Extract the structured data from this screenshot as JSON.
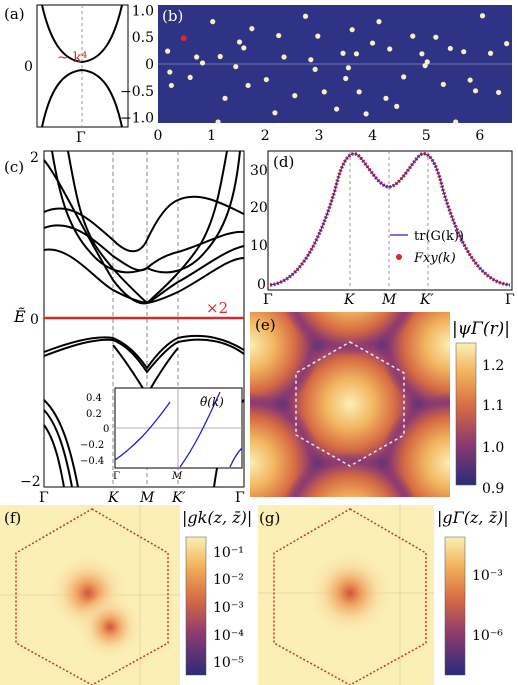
{
  "panels": [
    {
      "label": "(a)"
    },
    {
      "label": "(b)"
    },
    {
      "label": "(c)"
    },
    {
      "label": "(d)"
    },
    {
      "label": "(e)"
    },
    {
      "label": "(f)"
    },
    {
      "label": "(g)"
    }
  ],
  "colors": {
    "navy": "#2e3385",
    "red": "#d42a2a",
    "dot": "#f7f0c0",
    "blue": "#2222cc",
    "density_low": "#2a2b7a",
    "density_high": "#fbefb6"
  },
  "panel_a": {
    "annotation": "~ k⁴",
    "y_tick": "0",
    "x_tick": "Γ"
  },
  "panel_b": {
    "x_ticks": [
      "0",
      "1",
      "2",
      "3",
      "4",
      "5",
      "6"
    ],
    "y_ticks": [
      "1.0",
      "0.5",
      "0",
      "−0.5",
      "−1.0"
    ],
    "xlim": [
      0,
      6.6
    ],
    "ylim": [
      -1.1,
      1.1
    ],
    "marked_point": [
      0.48,
      0.48
    ],
    "points": [
      [
        0.18,
        0.24
      ],
      [
        0.22,
        -0.15
      ],
      [
        0.25,
        -0.4
      ],
      [
        0.6,
        -0.25
      ],
      [
        0.72,
        0.13
      ],
      [
        0.83,
        0.02
      ],
      [
        1.02,
        0.79
      ],
      [
        1.12,
        -1.08
      ],
      [
        1.16,
        0.14
      ],
      [
        1.25,
        -0.64
      ],
      [
        1.52,
        0.41
      ],
      [
        1.45,
        -0.05
      ],
      [
        1.6,
        0.3
      ],
      [
        1.68,
        -0.4
      ],
      [
        1.75,
        0.66
      ],
      [
        2.02,
        -0.29
      ],
      [
        2.18,
        -0.91
      ],
      [
        2.25,
        0.53
      ],
      [
        2.35,
        0.13
      ],
      [
        2.55,
        -0.59
      ],
      [
        2.75,
        0.89
      ],
      [
        2.85,
        0.08
      ],
      [
        2.93,
        -0.1
      ],
      [
        2.98,
        0.52
      ],
      [
        3.1,
        -0.52
      ],
      [
        3.33,
        -0.84
      ],
      [
        3.45,
        0.2
      ],
      [
        3.5,
        -0.27
      ],
      [
        3.55,
        -0.07
      ],
      [
        3.62,
        0.64
      ],
      [
        3.7,
        0.19
      ],
      [
        3.75,
        -0.52
      ],
      [
        3.88,
        -0.93
      ],
      [
        4.0,
        0.39
      ],
      [
        4.12,
        0.79
      ],
      [
        4.25,
        -0.64
      ],
      [
        4.32,
        0.28
      ],
      [
        4.45,
        -0.79
      ],
      [
        4.58,
        -0.24
      ],
      [
        4.75,
        0.52
      ],
      [
        4.92,
        0.19
      ],
      [
        4.98,
        -0.03
      ],
      [
        5.02,
        0.04
      ],
      [
        5.18,
        0.5
      ],
      [
        5.32,
        -0.38
      ],
      [
        5.45,
        0.29
      ],
      [
        5.55,
        -1.08
      ],
      [
        5.7,
        0.23
      ],
      [
        5.82,
        -0.3
      ],
      [
        5.92,
        -0.5
      ],
      [
        6.05,
        0.9
      ],
      [
        6.2,
        0.2
      ],
      [
        6.35,
        -0.53
      ],
      [
        6.5,
        0.38
      ]
    ]
  },
  "panel_c": {
    "y_label": "Ẽ",
    "y_ticks": [
      "2",
      "0",
      "−2"
    ],
    "x_ticks": [
      "Γ",
      "K",
      "M",
      "K′",
      "Γ"
    ],
    "flat_band_label": "×2",
    "inset": {
      "label": "θ̃(k)",
      "y_ticks": [
        "0.4",
        "0.2",
        "0",
        "−0.2",
        "−0.4"
      ],
      "x_ticks": [
        "Γ",
        "M"
      ]
    }
  },
  "panel_d": {
    "y_ticks": [
      "30",
      "20",
      "10",
      "0"
    ],
    "x_ticks": [
      "Γ",
      "K",
      "M",
      "K′",
      "Γ"
    ],
    "legend": [
      {
        "name": "tr(G(k))",
        "color": "#2222cc"
      },
      {
        "name": "Fxy(k)",
        "color": "#d42a2a"
      }
    ]
  },
  "panel_e": {
    "title": "|ψΓ(r)|",
    "colorbar_ticks": [
      "1.2",
      "1.1",
      "1.0",
      "0.9"
    ]
  },
  "panel_f": {
    "title": "|gk(z, z̄)|",
    "colorbar_ticks": [
      "10⁻¹",
      "10⁻²",
      "10⁻³",
      "10⁻⁴",
      "10⁻⁵"
    ]
  },
  "panel_g": {
    "title": "|gΓ(z, z̄)|",
    "colorbar_ticks": [
      "10⁻³",
      "10⁻⁶"
    ]
  }
}
